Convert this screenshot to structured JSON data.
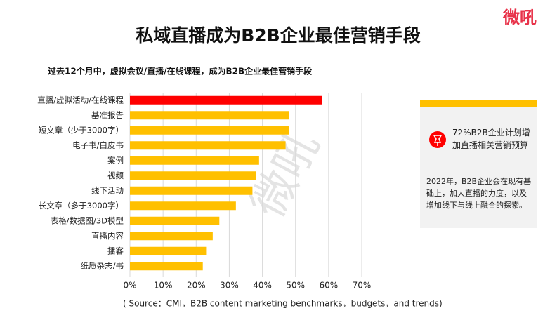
{
  "chart_data": {
    "type": "barh",
    "title": "私域直播成为B2B企业最佳营销手段",
    "subtitle": "过去12个月中，虚拟会议/直播/在线课程，成为B2B企业最佳营销手段",
    "source": "( Source：CMI，B2B content marketing benchmarks，budgets，and trends)",
    "categories": [
      "直播/虚拟活动/在线课程",
      "基准报告",
      "短文章（少于3000字）",
      "电子书/白皮书",
      "案例",
      "视频",
      "线下活动",
      "长文章（多于3000字）",
      "表格/数据图/3D模型",
      "直播内容",
      "播客",
      "纸质杂志/书"
    ],
    "values": [
      58,
      48,
      48,
      47,
      39,
      38,
      37,
      32,
      27,
      25,
      23,
      22
    ],
    "colors": [
      "#ff0000",
      "#ffc000",
      "#ffc000",
      "#ffc000",
      "#ffc000",
      "#ffc000",
      "#ffc000",
      "#ffc000",
      "#ffc000",
      "#ffc000",
      "#ffc000",
      "#ffc000"
    ],
    "xlim": [
      0,
      70
    ],
    "xticks": [
      {
        "value": 0,
        "label": "0%"
      },
      {
        "value": 10,
        "label": "10%"
      },
      {
        "value": 20,
        "label": "20%"
      },
      {
        "value": 30,
        "label": "30%"
      },
      {
        "value": 40,
        "label": "40%"
      },
      {
        "value": 50,
        "label": "50%"
      },
      {
        "value": 60,
        "label": "60%"
      },
      {
        "value": 70,
        "label": "70%"
      }
    ],
    "grid": true
  },
  "panel": {
    "highlight": "72%B2B企业计划增加直播相关营销预算",
    "text": "2022年，B2B企业会在现有基础上，加大直播的力度，以及增加线下与线上融合的探索。"
  },
  "logo": "微吼",
  "watermark": "微吼"
}
